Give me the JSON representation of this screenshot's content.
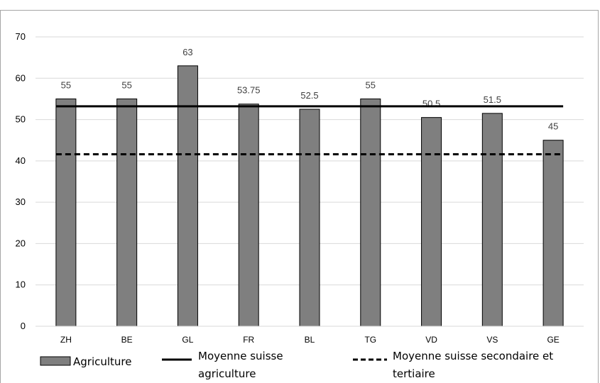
{
  "chart_data": {
    "type": "bar",
    "title": "",
    "xlabel": "",
    "ylabel": "",
    "categories": [
      "ZH",
      "BE",
      "GL",
      "FR",
      "BL",
      "TG",
      "VD",
      "VS",
      "GE"
    ],
    "series": [
      {
        "name": "Agriculture",
        "values": [
          55,
          55,
          63,
          53.75,
          52.5,
          55,
          50.5,
          51.5,
          45
        ],
        "data_labels": [
          "55",
          "55",
          "63",
          "53.75",
          "52.5",
          "55",
          "50.5",
          "51.5",
          "45"
        ],
        "color": "#7f7f7f"
      }
    ],
    "reference_lines": [
      {
        "name_lines": [
          "Moyenne suisse",
          "agriculture"
        ],
        "value": 53.2,
        "style": "solid",
        "color": "#000000"
      },
      {
        "name_lines": [
          "Moyenne suisse secondaire et",
          "tertiaire"
        ],
        "value": 41.6,
        "style": "dashed",
        "color": "#000000"
      }
    ],
    "ylim": [
      0,
      70
    ],
    "yticks": [
      "0",
      "10",
      "20",
      "30",
      "40",
      "50",
      "60",
      "70"
    ],
    "grid": true,
    "legend_position": "bottom"
  }
}
